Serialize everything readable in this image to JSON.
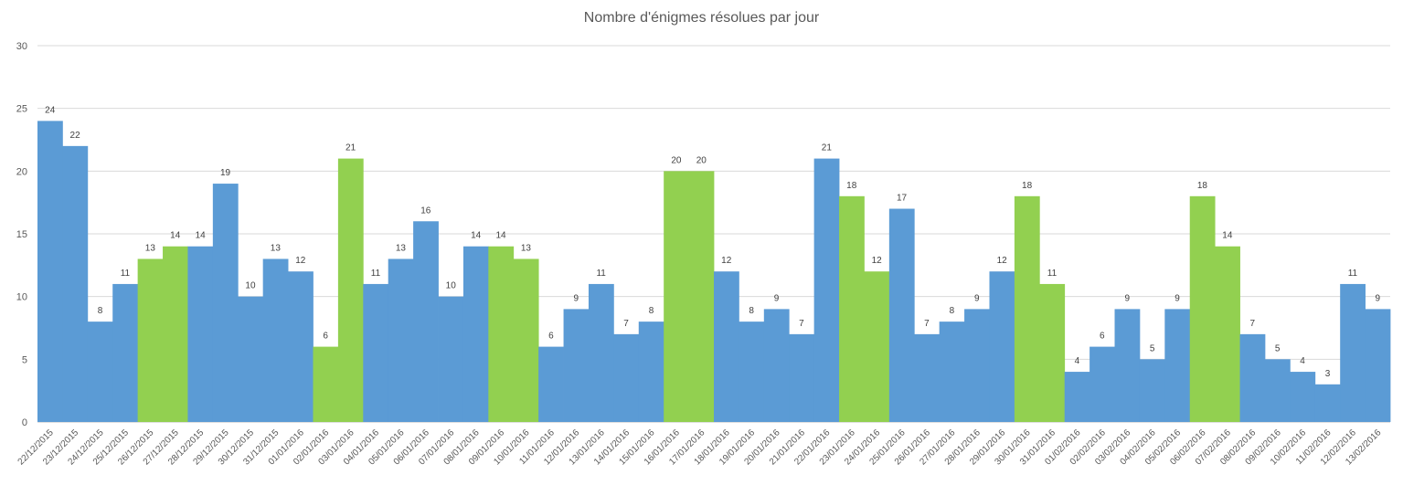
{
  "chart_data": {
    "type": "bar",
    "title": "Nombre d'énigmes résolues par jour",
    "xlabel": "",
    "ylabel": "",
    "ylim": [
      0,
      30
    ],
    "yticks": [
      0,
      5,
      10,
      15,
      20,
      25,
      30
    ],
    "grid": true,
    "legend": "none",
    "colors": {
      "weekday": "#5b9bd5",
      "weekend": "#92d050"
    },
    "categories": [
      "22/12/2015",
      "23/12/2015",
      "24/12/2015",
      "25/12/2015",
      "26/12/2015",
      "27/12/2015",
      "28/12/2015",
      "29/12/2015",
      "30/12/2015",
      "31/12/2015",
      "01/01/2016",
      "02/01/2016",
      "03/01/2016",
      "04/01/2016",
      "05/01/2016",
      "06/01/2016",
      "07/01/2016",
      "08/01/2016",
      "09/01/2016",
      "10/01/2016",
      "11/01/2016",
      "12/01/2016",
      "13/01/2016",
      "14/01/2016",
      "15/01/2016",
      "16/01/2016",
      "17/01/2016",
      "18/01/2016",
      "19/01/2016",
      "20/01/2016",
      "21/01/2016",
      "22/01/2016",
      "23/01/2016",
      "24/01/2016",
      "25/01/2016",
      "26/01/2016",
      "27/01/2016",
      "28/01/2016",
      "29/01/2016",
      "30/01/2016",
      "31/01/2016",
      "01/02/2016",
      "02/02/2016",
      "03/02/2016",
      "04/02/2016",
      "05/02/2016",
      "06/02/2016",
      "07/02/2016",
      "08/02/2016",
      "09/02/2016",
      "10/02/2016",
      "11/02/2016",
      "12/02/2016",
      "13/02/2016"
    ],
    "values": [
      24,
      22,
      8,
      11,
      13,
      14,
      14,
      19,
      10,
      13,
      12,
      6,
      21,
      11,
      13,
      16,
      10,
      14,
      14,
      13,
      6,
      9,
      11,
      7,
      8,
      20,
      20,
      12,
      8,
      9,
      7,
      21,
      18,
      12,
      17,
      7,
      8,
      9,
      12,
      18,
      11,
      4,
      6,
      9,
      5,
      9,
      18,
      14,
      7,
      5,
      4,
      3,
      11,
      9
    ],
    "weekend": [
      false,
      false,
      false,
      false,
      true,
      true,
      false,
      false,
      false,
      false,
      false,
      true,
      true,
      false,
      false,
      false,
      false,
      false,
      true,
      true,
      false,
      false,
      false,
      false,
      false,
      true,
      true,
      false,
      false,
      false,
      false,
      false,
      true,
      true,
      false,
      false,
      false,
      false,
      false,
      true,
      true,
      false,
      false,
      false,
      false,
      false,
      true,
      true,
      false,
      false,
      false,
      false,
      false,
      false
    ]
  }
}
